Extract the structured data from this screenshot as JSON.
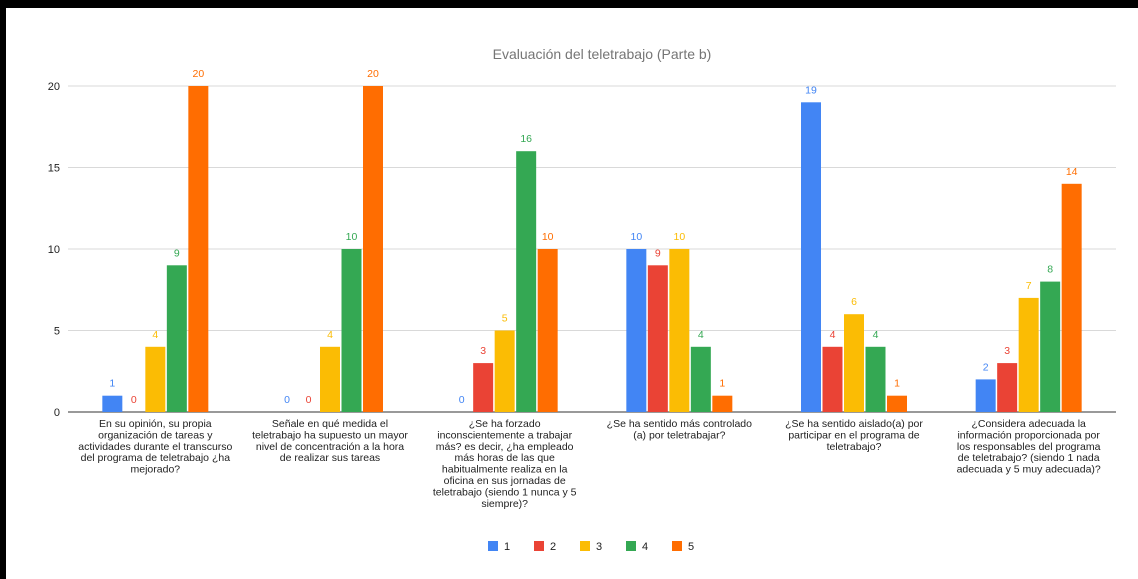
{
  "chart_data": {
    "type": "bar",
    "title": "Evaluación del teletrabajo (Parte b)",
    "xlabel": "",
    "ylabel": "",
    "ylim": [
      0,
      20
    ],
    "yticks": [
      0,
      5,
      10,
      15,
      20
    ],
    "grid": true,
    "legend_position": "bottom",
    "categories": [
      [
        "En su opinión, su propia",
        "organización de tareas y",
        "actividades durante el transcurso",
        "del programa de teletrabajo ¿ha",
        "mejorado?"
      ],
      [
        "Señale en qué medida el",
        "teletrabajo ha supuesto un mayor",
        "nivel de concentración a la hora",
        "de realizar sus tareas"
      ],
      [
        "¿Se ha forzado",
        "inconscientemente a trabajar",
        "más? es decir, ¿ha empleado",
        "más horas de las que",
        "habitualmente realiza en la",
        "oficina en sus jornadas de",
        "teletrabajo (siendo 1 nunca y 5",
        "siempre)?"
      ],
      [
        "¿Se ha sentido más controlado",
        "(a) por teletrabajar?"
      ],
      [
        "¿Se ha sentido aislado(a) por",
        "participar en el programa de",
        "teletrabajo?"
      ],
      [
        "¿Considera adecuada la",
        "información proporcionada por",
        "los responsables del programa",
        "de teletrabajo? (siendo 1 nada",
        "adecuada y 5 muy adecuada)?"
      ]
    ],
    "series": [
      {
        "name": "1",
        "color": "#4285f4",
        "values": [
          1,
          0,
          0,
          10,
          19,
          2
        ]
      },
      {
        "name": "2",
        "color": "#ea4335",
        "values": [
          0,
          0,
          3,
          9,
          4,
          3
        ]
      },
      {
        "name": "3",
        "color": "#fbbc04",
        "values": [
          4,
          4,
          5,
          10,
          6,
          7
        ]
      },
      {
        "name": "4",
        "color": "#34a853",
        "values": [
          9,
          10,
          16,
          4,
          4,
          8
        ]
      },
      {
        "name": "5",
        "color": "#ff6d01",
        "values": [
          20,
          20,
          10,
          1,
          1,
          14
        ]
      }
    ]
  }
}
